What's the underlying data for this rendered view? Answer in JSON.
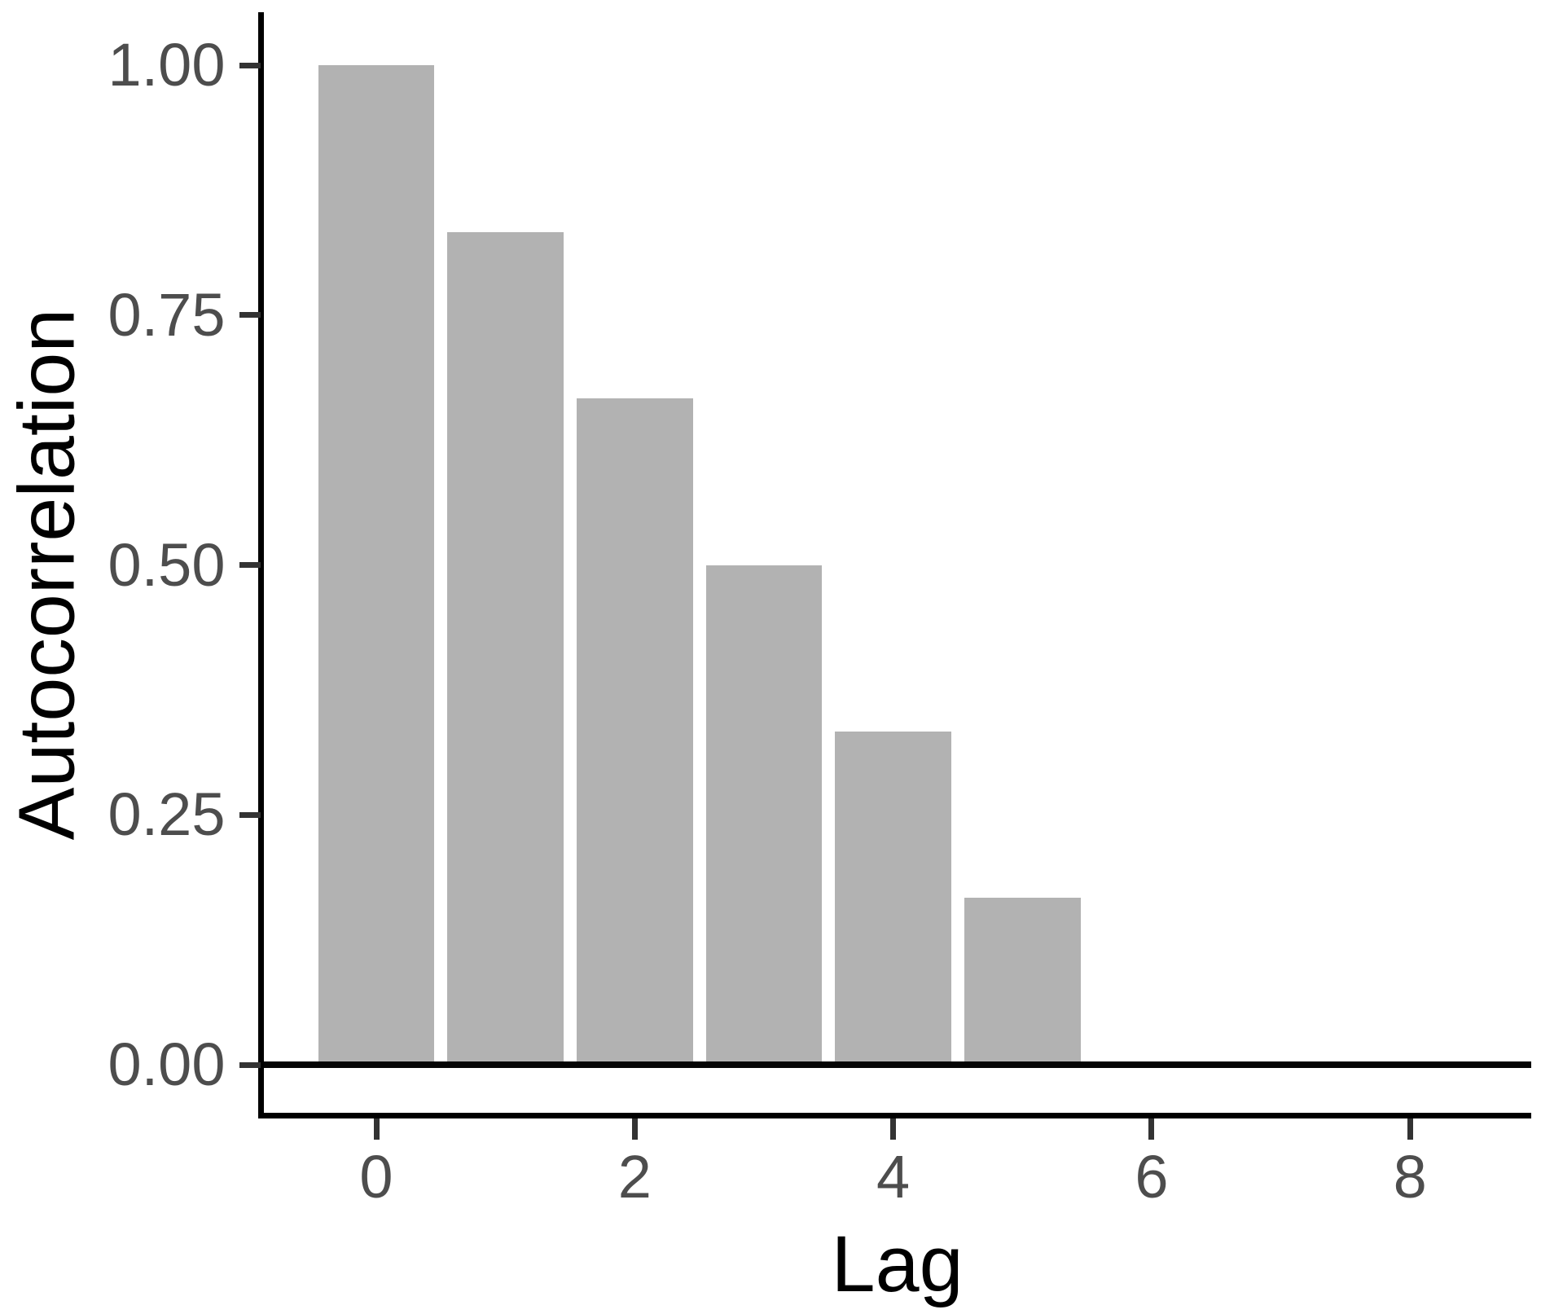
{
  "chart_data": {
    "type": "bar",
    "title": "",
    "xlabel": "Lag",
    "ylabel": "Autocorrelation",
    "x": [
      0,
      1,
      2,
      3,
      4,
      5,
      6,
      7,
      8
    ],
    "values": [
      1.0,
      0.8333,
      0.6667,
      0.5,
      0.3333,
      0.1667,
      0,
      0,
      0
    ],
    "bar_width_ratio": 0.9,
    "xticks": {
      "values": [
        0,
        2,
        4,
        6,
        8
      ],
      "labels": [
        "0",
        "2",
        "4",
        "6",
        "8"
      ]
    },
    "yticks": {
      "values": [
        0,
        0.25,
        0.5,
        0.75,
        1.0
      ],
      "labels": [
        "0.00",
        "0.25",
        "0.50",
        "0.75",
        "1.00"
      ]
    },
    "xlim": [
      -0.9,
      8.95
    ],
    "ylim": [
      0,
      1.0
    ],
    "grid": false,
    "legend": false,
    "zero_line": true,
    "colors": {
      "bar_fill": "#b2b2b2",
      "axis_line": "#000000",
      "zero_line": "#050505",
      "tick_mark": "#333333",
      "tick_label": "#4d4d4d",
      "axis_title": "#000000",
      "background": "#ffffff"
    }
  }
}
